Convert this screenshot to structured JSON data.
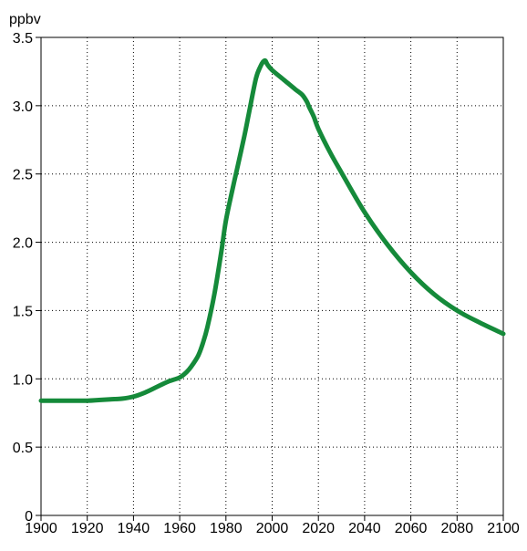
{
  "chart_data": {
    "type": "line",
    "title": "",
    "unit_label": "ppbv",
    "xlabel": "",
    "ylabel": "",
    "xlim": [
      1900,
      2100
    ],
    "ylim": [
      0,
      3.5
    ],
    "x_ticks": [
      1900,
      1920,
      1940,
      1960,
      1980,
      2000,
      2020,
      2040,
      2060,
      2080,
      2100
    ],
    "x_tick_labels": [
      "1900",
      "1920",
      "1940",
      "1960",
      "1980",
      "2000",
      "2020",
      "2040",
      "2060",
      "2080",
      "2100"
    ],
    "y_ticks": [
      0,
      0.5,
      1.0,
      1.5,
      2.0,
      2.5,
      3.0,
      3.5
    ],
    "y_tick_labels": [
      "0",
      "0.5",
      "1.0",
      "1.5",
      "2.0",
      "2.5",
      "3.0",
      "3.5"
    ],
    "grid": true,
    "grid_style": "dotted",
    "legend": "none",
    "series": [
      {
        "color": "#158a3a",
        "x": [
          1900,
          1910,
          1920,
          1925,
          1930,
          1935,
          1940,
          1945,
          1950,
          1955,
          1960,
          1963,
          1965,
          1968,
          1970,
          1972,
          1975,
          1978,
          1980,
          1983,
          1985,
          1988,
          1990,
          1993,
          1995,
          1996,
          1997,
          1998,
          2000,
          2005,
          2010,
          2013,
          2015,
          2016,
          2018,
          2020,
          2025,
          2030,
          2040,
          2050,
          2060,
          2070,
          2080,
          2090,
          2100
        ],
        "y": [
          0.84,
          0.84,
          0.84,
          0.845,
          0.85,
          0.855,
          0.87,
          0.9,
          0.94,
          0.98,
          1.01,
          1.05,
          1.09,
          1.17,
          1.26,
          1.38,
          1.62,
          1.93,
          2.16,
          2.4,
          2.55,
          2.78,
          2.95,
          3.2,
          3.29,
          3.32,
          3.33,
          3.3,
          3.26,
          3.19,
          3.12,
          3.08,
          3.03,
          2.99,
          2.92,
          2.83,
          2.66,
          2.51,
          2.22,
          1.98,
          1.78,
          1.62,
          1.5,
          1.41,
          1.33
        ]
      }
    ]
  }
}
